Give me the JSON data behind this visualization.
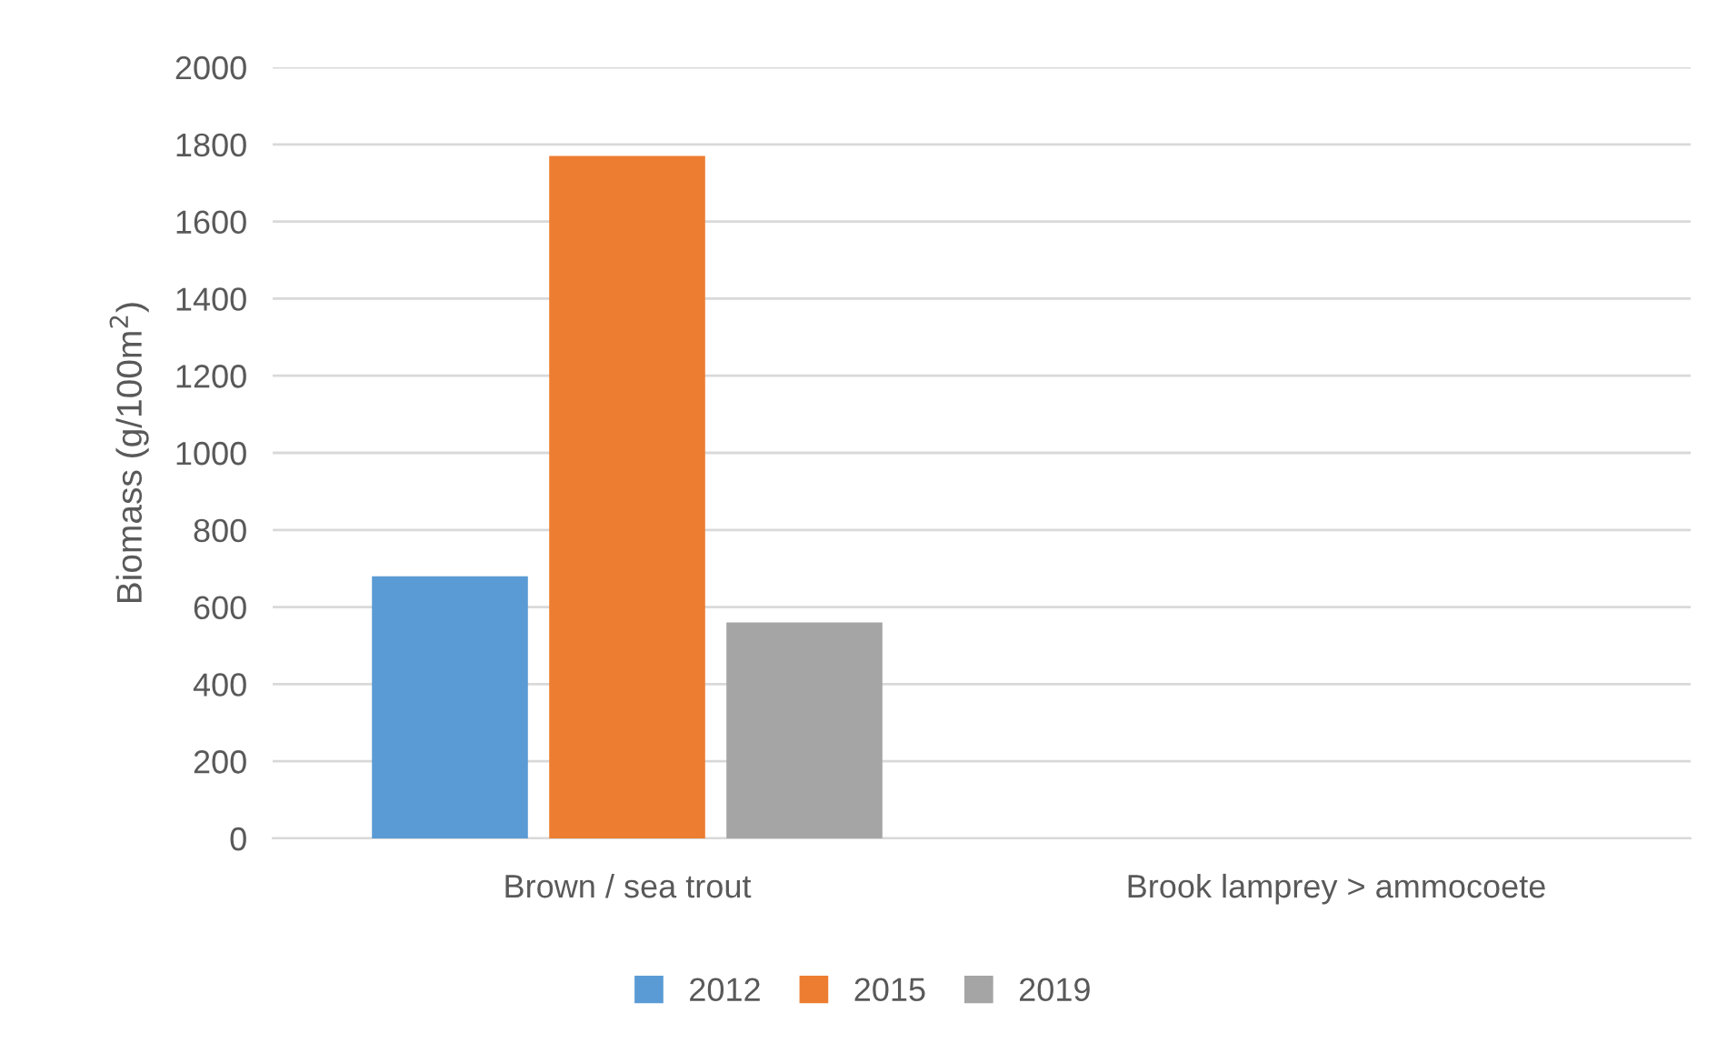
{
  "chart_data": {
    "type": "bar",
    "ylabel": "Biomass (g/100m$^{2}$)",
    "categories": [
      "Brown / sea trout",
      "Brook lamprey > ammocoete"
    ],
    "series": [
      {
        "name": "2012",
        "color": "#5b9bd5",
        "values": [
          680,
          0
        ]
      },
      {
        "name": "2015",
        "color": "#ed7d31",
        "values": [
          1770,
          0
        ]
      },
      {
        "name": "2019",
        "color": "#a5a5a5",
        "values": [
          560,
          0
        ]
      }
    ],
    "ylim": [
      0,
      2000
    ],
    "yticks": [
      0,
      200,
      400,
      600,
      800,
      1000,
      1200,
      1400,
      1600,
      1800,
      2000
    ],
    "grid": "y",
    "legend": "bottom"
  }
}
